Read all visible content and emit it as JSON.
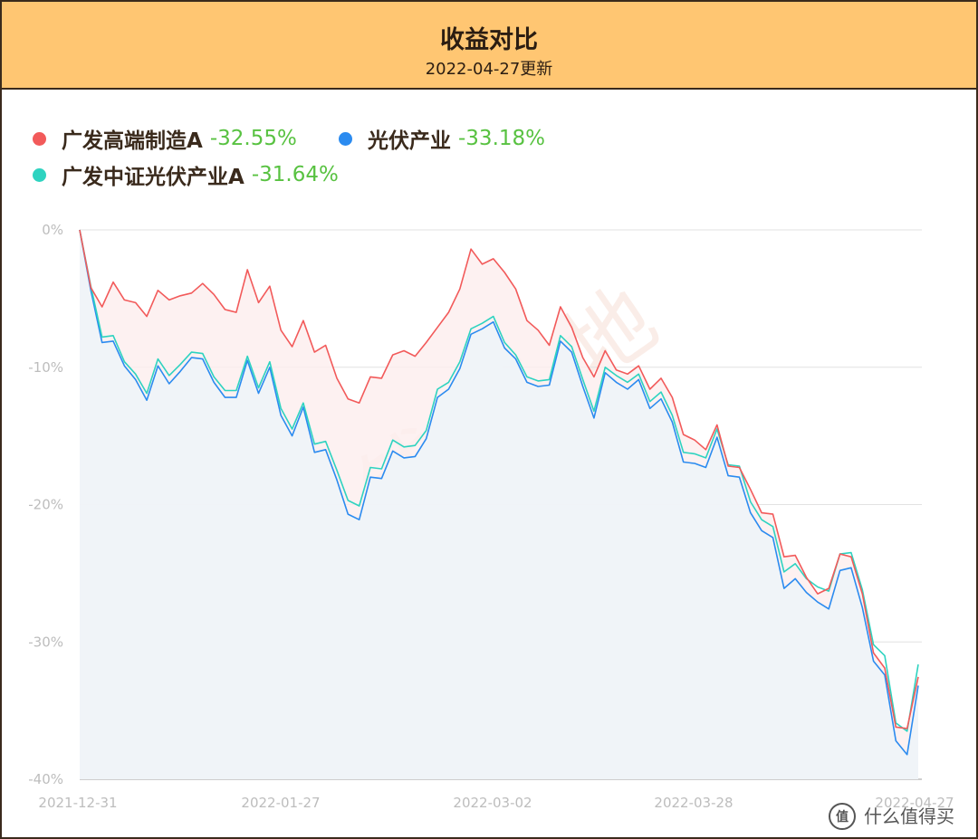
{
  "header": {
    "title": "收益对比",
    "subtitle": "2022-04-27更新"
  },
  "watermark": {
    "text": "搞钱基地",
    "logo_text": "什么值得买"
  },
  "colors": {
    "header_bg": "#ffc672",
    "border": "#3a2a1c",
    "positive_pct": "#58c241",
    "grid": "#e0e0e0",
    "tick_text": "#bdbdbd"
  },
  "chart_data": {
    "type": "line",
    "title": "收益对比",
    "subtitle": "2022-04-27更新",
    "x_tick_labels": [
      "2021-12-31",
      "2022-01-27",
      "2022-03-02",
      "2022-03-28",
      "2022-04-27"
    ],
    "y_tick_labels": [
      "0%",
      "-10%",
      "-20%",
      "-30%",
      "-40%"
    ],
    "ylim": [
      -40,
      0
    ],
    "grid": true,
    "legend_position": "top-left",
    "series": [
      {
        "name": "广发高端制造A",
        "final_pct": "-32.55%",
        "color": "#f25a5a",
        "values": [
          0,
          -4.2,
          -5.6,
          -3.8,
          -5.1,
          -5.3,
          -6.3,
          -4.4,
          -5.1,
          -4.8,
          -4.6,
          -3.9,
          -4.7,
          -5.8,
          -6.0,
          -2.9,
          -5.3,
          -4.1,
          -7.3,
          -8.5,
          -6.6,
          -8.9,
          -8.4,
          -10.8,
          -12.3,
          -12.6,
          -10.7,
          -10.8,
          -9.1,
          -8.8,
          -9.2,
          -8.2,
          -7.1,
          -6.0,
          -4.3,
          -1.4,
          -2.5,
          -2.1,
          -3.1,
          -4.3,
          -6.6,
          -7.3,
          -8.4,
          -5.6,
          -7.1,
          -9.3,
          -10.7,
          -8.8,
          -10.2,
          -10.5,
          -9.9,
          -11.6,
          -10.8,
          -12.2,
          -14.9,
          -15.3,
          -16.0,
          -14.2,
          -17.2,
          -17.3,
          -18.9,
          -20.6,
          -20.7,
          -23.8,
          -23.7,
          -25.3,
          -26.5,
          -26.1,
          -23.6,
          -23.8,
          -26.5,
          -30.8,
          -31.9,
          -36.2,
          -36.3,
          -32.55
        ]
      },
      {
        "name": "光伏产业",
        "final_pct": "-33.18%",
        "color": "#2b8bf0",
        "values": [
          0,
          -4.4,
          -8.2,
          -8.1,
          -9.9,
          -10.9,
          -12.4,
          -9.9,
          -11.2,
          -10.3,
          -9.3,
          -9.4,
          -11.1,
          -12.2,
          -12.2,
          -9.5,
          -11.9,
          -10.0,
          -13.5,
          -15.0,
          -12.9,
          -16.2,
          -16.0,
          -18.2,
          -20.7,
          -21.1,
          -18.0,
          -18.1,
          -16.1,
          -16.6,
          -16.5,
          -15.2,
          -12.2,
          -11.6,
          -10.1,
          -7.6,
          -7.2,
          -6.7,
          -8.6,
          -9.4,
          -11.1,
          -11.4,
          -11.3,
          -8.1,
          -8.9,
          -11.4,
          -13.7,
          -10.4,
          -11.1,
          -11.6,
          -10.9,
          -13.0,
          -12.3,
          -14.0,
          -16.9,
          -17.0,
          -17.3,
          -15.1,
          -17.9,
          -18.0,
          -20.6,
          -21.9,
          -22.4,
          -26.1,
          -25.4,
          -26.4,
          -27.1,
          -27.6,
          -24.8,
          -24.6,
          -27.5,
          -31.4,
          -32.4,
          -37.2,
          -38.2,
          -33.18
        ]
      },
      {
        "name": "广发中证光伏产业A",
        "final_pct": "-31.64%",
        "color": "#2ed3c0",
        "values": [
          0,
          -4.1,
          -7.8,
          -7.7,
          -9.6,
          -10.5,
          -11.9,
          -9.4,
          -10.6,
          -9.8,
          -8.9,
          -9.0,
          -10.7,
          -11.7,
          -11.7,
          -9.2,
          -11.5,
          -9.6,
          -13.0,
          -14.5,
          -12.6,
          -15.6,
          -15.4,
          -17.5,
          -19.7,
          -20.1,
          -17.3,
          -17.4,
          -15.3,
          -15.8,
          -15.7,
          -14.6,
          -11.6,
          -11.1,
          -9.6,
          -7.2,
          -6.8,
          -6.3,
          -8.2,
          -9.1,
          -10.7,
          -11.0,
          -10.9,
          -7.7,
          -8.5,
          -10.9,
          -13.2,
          -10.0,
          -10.6,
          -11.1,
          -10.5,
          -12.5,
          -11.8,
          -13.5,
          -16.2,
          -16.3,
          -16.6,
          -14.5,
          -17.1,
          -17.2,
          -19.8,
          -21.1,
          -21.6,
          -24.9,
          -24.3,
          -25.4,
          -26.0,
          -26.3,
          -23.6,
          -23.5,
          -26.2,
          -30.2,
          -31.0,
          -35.9,
          -36.5,
          -31.64
        ]
      }
    ]
  }
}
